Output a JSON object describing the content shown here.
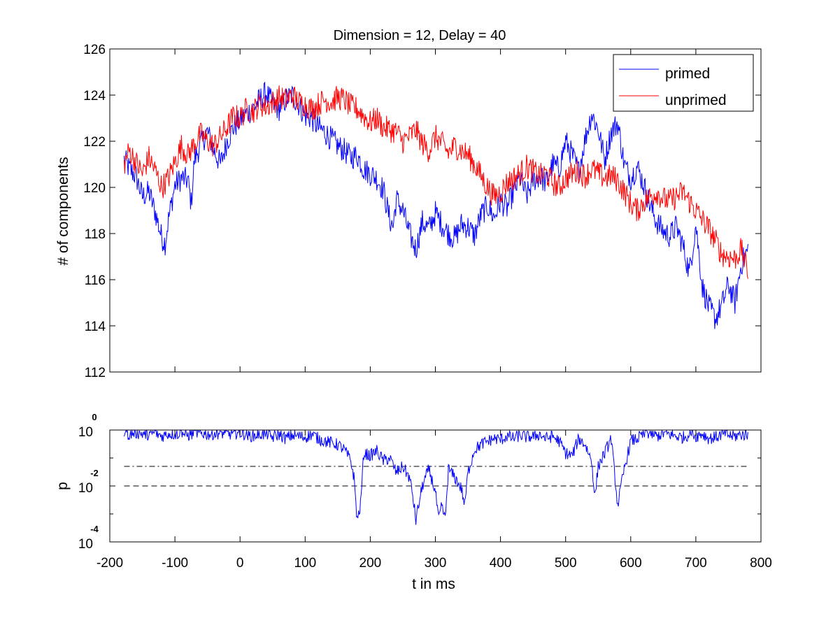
{
  "chart_data": [
    {
      "type": "line",
      "title": "Dimension  = 12, Delay = 40",
      "xlabel": "",
      "ylabel": "# of components",
      "xlim": [
        -200,
        800
      ],
      "ylim": [
        112,
        126
      ],
      "yticks": [
        "112",
        "114",
        "116",
        "118",
        "120",
        "122",
        "124",
        "126"
      ],
      "grid": false,
      "legend_position": "top-right",
      "series": [
        {
          "name": "primed",
          "color": "#0000ff",
          "x": [
            -178,
            -170,
            -160,
            -150,
            -140,
            -130,
            -120,
            -115,
            -110,
            -100,
            -90,
            -80,
            -75,
            -70,
            -60,
            -50,
            -40,
            -30,
            -20,
            -10,
            0,
            10,
            20,
            30,
            40,
            50,
            60,
            70,
            80,
            90,
            100,
            110,
            120,
            130,
            140,
            150,
            160,
            170,
            180,
            190,
            200,
            210,
            220,
            230,
            235,
            240,
            250,
            260,
            270,
            280,
            290,
            300,
            310,
            320,
            330,
            340,
            350,
            360,
            370,
            380,
            390,
            400,
            410,
            420,
            430,
            440,
            450,
            460,
            470,
            480,
            490,
            500,
            510,
            520,
            530,
            540,
            550,
            560,
            570,
            580,
            590,
            600,
            610,
            620,
            630,
            640,
            650,
            660,
            670,
            680,
            690,
            700,
            710,
            720,
            730,
            740,
            750,
            760,
            770,
            780
          ],
          "y": [
            121.2,
            120.8,
            120.5,
            119.6,
            119.8,
            118.9,
            117.8,
            117.6,
            118.6,
            120.1,
            120.4,
            120.3,
            119.3,
            121.2,
            121.9,
            122.4,
            121.6,
            121.0,
            122.0,
            122.6,
            122.9,
            123.2,
            123.4,
            123.8,
            124.1,
            123.6,
            123.4,
            123.8,
            124.0,
            123.6,
            123.1,
            123.0,
            122.6,
            122.4,
            122.1,
            121.8,
            121.6,
            121.3,
            121.4,
            120.8,
            120.6,
            120.4,
            119.9,
            118.6,
            118.3,
            119.5,
            119.0,
            118.0,
            117.3,
            118.5,
            118.2,
            118.9,
            118.4,
            118.0,
            117.8,
            118.4,
            118.3,
            117.9,
            118.8,
            119.2,
            118.7,
            119.4,
            119.1,
            119.8,
            120.4,
            119.6,
            120.3,
            120.5,
            120.2,
            121.0,
            120.8,
            122.0,
            121.4,
            120.7,
            122.1,
            123.2,
            122.5,
            121.2,
            122.4,
            122.8,
            121.0,
            120.4,
            120.9,
            120.1,
            119.2,
            118.5,
            118.1,
            117.9,
            118.3,
            117.5,
            116.3,
            118.4,
            115.7,
            114.8,
            114.3,
            114.9,
            115.8,
            115.0,
            116.7,
            117.3
          ]
        },
        {
          "name": "unprimed",
          "color": "#ff0000",
          "x": [
            -178,
            -170,
            -160,
            -150,
            -140,
            -130,
            -120,
            -110,
            -100,
            -90,
            -80,
            -70,
            -60,
            -50,
            -40,
            -30,
            -20,
            -10,
            0,
            10,
            20,
            30,
            40,
            50,
            60,
            70,
            80,
            90,
            100,
            110,
            120,
            130,
            140,
            150,
            160,
            170,
            180,
            190,
            200,
            210,
            220,
            230,
            240,
            250,
            260,
            270,
            280,
            290,
            300,
            310,
            320,
            330,
            340,
            350,
            360,
            370,
            380,
            390,
            400,
            410,
            420,
            430,
            440,
            450,
            460,
            470,
            480,
            490,
            500,
            510,
            520,
            530,
            540,
            550,
            560,
            570,
            580,
            590,
            600,
            610,
            620,
            630,
            640,
            650,
            660,
            670,
            680,
            690,
            700,
            710,
            720,
            730,
            740,
            750,
            760,
            770,
            780
          ],
          "y": [
            121.0,
            121.6,
            121.1,
            120.6,
            121.3,
            120.7,
            120.0,
            120.4,
            121.1,
            121.8,
            121.4,
            121.9,
            122.3,
            122.0,
            121.8,
            122.2,
            122.6,
            123.1,
            123.0,
            123.4,
            123.3,
            123.6,
            123.5,
            123.7,
            123.9,
            123.8,
            124.0,
            123.7,
            123.6,
            123.4,
            123.6,
            123.8,
            123.7,
            123.9,
            123.8,
            123.5,
            123.4,
            123.1,
            122.8,
            123.0,
            122.6,
            122.5,
            122.4,
            122.0,
            122.2,
            122.5,
            121.9,
            121.6,
            122.2,
            121.9,
            121.5,
            121.8,
            121.6,
            121.4,
            121.0,
            120.5,
            120.0,
            119.6,
            119.8,
            120.2,
            120.4,
            120.6,
            120.9,
            120.7,
            120.5,
            120.6,
            120.2,
            120.0,
            120.4,
            120.6,
            120.7,
            120.5,
            120.8,
            120.6,
            120.4,
            120.5,
            120.3,
            119.8,
            119.3,
            119.0,
            119.4,
            119.6,
            119.8,
            119.5,
            119.4,
            119.6,
            119.8,
            119.4,
            119.0,
            118.6,
            118.2,
            117.7,
            117.1,
            117.0,
            116.9,
            117.3,
            116.3
          ]
        }
      ]
    },
    {
      "type": "line",
      "title": "",
      "xlabel": "t in ms",
      "ylabel": "p",
      "xlim": [
        -200,
        800
      ],
      "ylim_log10": [
        -4,
        0
      ],
      "log_scale_y": true,
      "xticks": [
        "-200",
        "-100",
        "0",
        "100",
        "200",
        "300",
        "400",
        "500",
        "600",
        "700",
        "800"
      ],
      "yticks": [
        {
          "base": "10",
          "exp": "0"
        },
        {
          "base": "10",
          "exp": "-2"
        },
        {
          "base": "10",
          "exp": "-4"
        }
      ],
      "reference_lines": [
        {
          "style": "dash-dot",
          "p": 0.05
        },
        {
          "style": "dashed",
          "p": 0.01
        }
      ],
      "series": [
        {
          "color": "#0000ff",
          "x": [
            -178,
            -170,
            -160,
            -150,
            -140,
            -130,
            -120,
            -110,
            -100,
            -90,
            -80,
            -70,
            -60,
            -50,
            -40,
            -30,
            -20,
            -10,
            0,
            10,
            20,
            30,
            40,
            50,
            60,
            70,
            80,
            90,
            100,
            110,
            120,
            130,
            140,
            150,
            160,
            170,
            175,
            180,
            185,
            190,
            200,
            210,
            220,
            230,
            240,
            250,
            260,
            265,
            270,
            280,
            290,
            300,
            305,
            310,
            315,
            320,
            330,
            340,
            345,
            350,
            360,
            370,
            380,
            390,
            400,
            410,
            420,
            430,
            440,
            450,
            460,
            470,
            480,
            490,
            500,
            510,
            520,
            530,
            540,
            545,
            550,
            560,
            570,
            575,
            580,
            590,
            600,
            610,
            620,
            630,
            640,
            650,
            660,
            670,
            680,
            690,
            700,
            710,
            720,
            730,
            740,
            750,
            760,
            770,
            780
          ],
          "p": [
            0.8,
            0.7,
            0.8,
            0.75,
            0.7,
            0.8,
            0.6,
            0.75,
            0.7,
            0.8,
            0.65,
            0.75,
            0.8,
            0.7,
            0.75,
            0.8,
            0.7,
            0.75,
            0.8,
            0.7,
            0.6,
            0.75,
            0.65,
            0.55,
            0.7,
            0.5,
            0.65,
            0.6,
            0.55,
            0.7,
            0.5,
            0.4,
            0.35,
            0.3,
            0.2,
            0.08,
            0.02,
            0.0006,
            0.002,
            0.15,
            0.12,
            0.18,
            0.08,
            0.1,
            0.03,
            0.05,
            0.02,
            0.005,
            0.0006,
            0.01,
            0.04,
            0.006,
            0.0006,
            0.002,
            0.0006,
            0.04,
            0.02,
            0.008,
            0.002,
            0.03,
            0.2,
            0.3,
            0.4,
            0.5,
            0.45,
            0.6,
            0.5,
            0.65,
            0.55,
            0.6,
            0.7,
            0.5,
            0.6,
            0.4,
            0.15,
            0.12,
            0.5,
            0.3,
            0.08,
            0.004,
            0.05,
            0.15,
            0.5,
            0.03,
            0.002,
            0.04,
            0.4,
            0.5,
            0.7,
            0.8,
            0.6,
            0.75,
            0.7,
            0.6,
            0.55,
            0.7,
            0.6,
            0.75,
            0.5,
            0.55,
            0.7,
            0.65,
            0.6,
            0.7,
            0.65
          ]
        }
      ]
    }
  ]
}
